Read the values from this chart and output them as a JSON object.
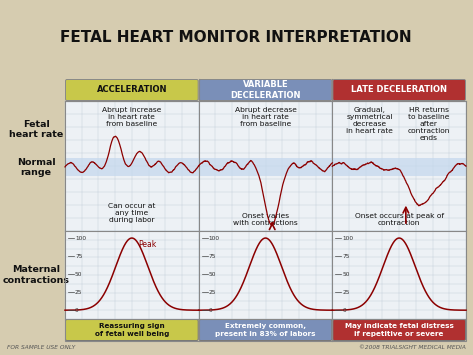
{
  "title": "FETAL HEART MONITOR INTERPRETATION",
  "title_fontsize": 11,
  "bg_color": "#d6ccb0",
  "grid_color": "#c0ccd8",
  "grid_bg": "#edf1f5",
  "normal_range_color": "#c5d8ed",
  "line_color": "#8b0000",
  "col_headers": [
    "ACCELERATION",
    "VARIABLE\nDECELERATION",
    "LATE DECELERATION"
  ],
  "col_header_colors": [
    "#c8c84a",
    "#7a8fb8",
    "#b03030"
  ],
  "col_header_text_color": [
    "#111111",
    "#ffffff",
    "#ffffff"
  ],
  "footer_texts": [
    "Reassuring sign\nof fetal well being",
    "Extremely common,\npresent in 83% of labors",
    "May indicate fetal distress\nif repetitive or severe"
  ],
  "footer_colors": [
    "#c8c84a",
    "#7a8fb8",
    "#b03030"
  ],
  "footer_text_colors": [
    "#111111",
    "#ffffff",
    "#ffffff"
  ],
  "left_labels_fhr": "Fetal\nheart rate",
  "left_labels_nr": "Normal\nrange",
  "left_labels_mc": "Maternal\ncontractions",
  "watermark_left": "FOR SAMPLE USE ONLY",
  "watermark_right": "©2008 TRIALSIGHT MEDICAL MEDIA",
  "fhr_ann_col0_top": "Abrupt increase\nin heart rate\nfrom baseline",
  "fhr_ann_col0_bot": "Can occur at\nany time\nduring labor",
  "fhr_ann_col1_top": "Abrupt decrease\nin heart rate\nfrom baseline",
  "fhr_ann_col1_bot": "Onset varies\nwith contractions",
  "fhr_ann_col2_topa": "Gradual,\nsymmetrical\ndecrease\nin heart rate",
  "fhr_ann_col2_topb": "HR returns\nto baseline\nafter\ncontraction\nends",
  "fhr_ann_col2_bot": "Onset occurs at peak of\ncontraction"
}
